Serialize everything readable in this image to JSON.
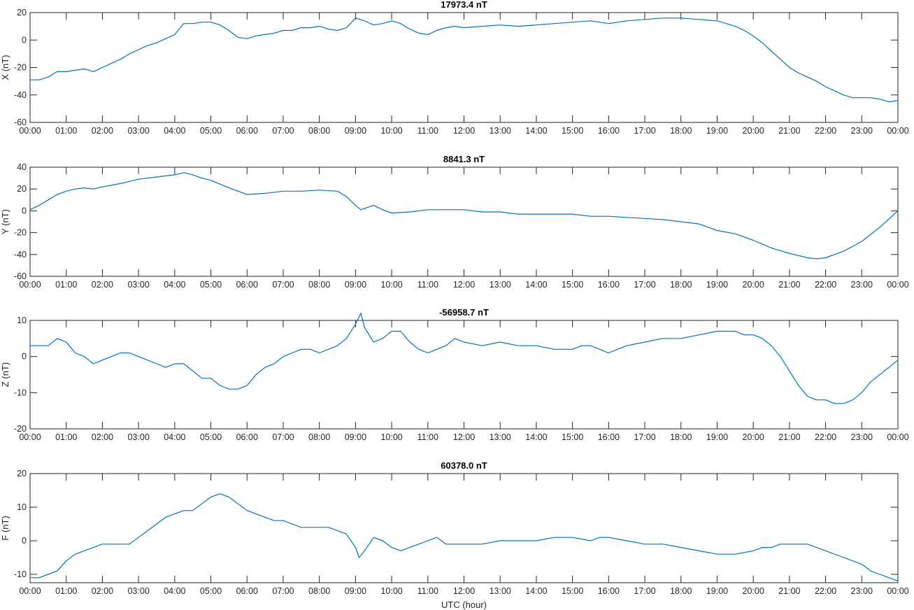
{
  "chart_data": [
    {
      "type": "line",
      "title": "17973.4 nT",
      "ylabel": "X (nT)",
      "xlabel": "",
      "ylim": [
        -60,
        20
      ],
      "yticks": [
        -60,
        -40,
        -20,
        0,
        20
      ],
      "xlim_hours": [
        0,
        24
      ],
      "xticks": [
        "00:00",
        "01:00",
        "02:00",
        "03:00",
        "04:00",
        "05:00",
        "06:00",
        "07:00",
        "08:00",
        "09:00",
        "10:00",
        "11:00",
        "12:00",
        "13:00",
        "14:00",
        "15:00",
        "16:00",
        "17:00",
        "18:00",
        "19:00",
        "20:00",
        "21:00",
        "22:00",
        "23:00",
        "00:00"
      ],
      "grid": false,
      "color": "#0072bd",
      "series": [
        {
          "x_hours": [
            0,
            0.25,
            0.5,
            0.75,
            1.0,
            1.25,
            1.5,
            1.75,
            2.0,
            2.25,
            2.5,
            2.75,
            3.0,
            3.25,
            3.5,
            3.75,
            4.0,
            4.25,
            4.5,
            4.75,
            5.0,
            5.25,
            5.5,
            5.75,
            6.0,
            6.25,
            6.5,
            6.75,
            7.0,
            7.25,
            7.5,
            7.75,
            8.0,
            8.25,
            8.5,
            8.75,
            9.0,
            9.25,
            9.5,
            9.75,
            10.0,
            10.25,
            10.5,
            10.75,
            11.0,
            11.25,
            11.5,
            11.75,
            12.0,
            12.5,
            13.0,
            13.5,
            14.0,
            14.5,
            15.0,
            15.5,
            16.0,
            16.5,
            17.0,
            17.5,
            17.75,
            18.0,
            18.5,
            19.0,
            19.25,
            19.5,
            19.75,
            20.0,
            20.25,
            20.5,
            20.75,
            21.0,
            21.25,
            21.5,
            21.75,
            22.0,
            22.25,
            22.5,
            22.75,
            23.0,
            23.25,
            23.5,
            23.75,
            24.0
          ],
          "values": [
            -29,
            -29,
            -27,
            -23,
            -23,
            -22,
            -21,
            -23,
            -20,
            -17,
            -14,
            -10,
            -7,
            -4,
            -2,
            1,
            4,
            12,
            12,
            13,
            13,
            11,
            7,
            2,
            1,
            3,
            4,
            5,
            7,
            7,
            9,
            9,
            10,
            8,
            7,
            9,
            16,
            14,
            11,
            12,
            14,
            12,
            8,
            5,
            4,
            7,
            9,
            10,
            9,
            10,
            11,
            10,
            11,
            12,
            13,
            14,
            12,
            14,
            15,
            16,
            16,
            16,
            15,
            14,
            12,
            10,
            7,
            3,
            -2,
            -8,
            -14,
            -20,
            -24,
            -27,
            -30,
            -34,
            -37,
            -40,
            -42,
            -42,
            -42,
            -43,
            -45,
            -44
          ]
        }
      ]
    },
    {
      "type": "line",
      "title": "8841.3 nT",
      "ylabel": "Y (nT)",
      "xlabel": "",
      "ylim": [
        -60,
        40
      ],
      "yticks": [
        -60,
        -40,
        -20,
        0,
        20,
        40
      ],
      "xlim_hours": [
        0,
        24
      ],
      "xticks": [
        "00:00",
        "01:00",
        "02:00",
        "03:00",
        "04:00",
        "05:00",
        "06:00",
        "07:00",
        "08:00",
        "09:00",
        "10:00",
        "11:00",
        "12:00",
        "13:00",
        "14:00",
        "15:00",
        "16:00",
        "17:00",
        "18:00",
        "19:00",
        "20:00",
        "21:00",
        "22:00",
        "23:00",
        "00:00"
      ],
      "grid": false,
      "color": "#0072bd",
      "series": [
        {
          "x_hours": [
            0,
            0.25,
            0.5,
            0.75,
            1.0,
            1.25,
            1.5,
            1.75,
            2.0,
            2.5,
            3.0,
            3.5,
            4.0,
            4.25,
            4.5,
            4.75,
            5.0,
            5.5,
            6.0,
            6.5,
            7.0,
            7.5,
            8.0,
            8.5,
            8.75,
            9.0,
            9.15,
            9.5,
            9.75,
            10.0,
            10.5,
            11.0,
            11.5,
            12.0,
            12.5,
            13.0,
            13.5,
            14.0,
            14.5,
            15.0,
            15.5,
            16.0,
            16.5,
            17.0,
            17.5,
            18.0,
            18.5,
            19.0,
            19.5,
            20.0,
            20.5,
            21.0,
            21.5,
            21.75,
            22.0,
            22.5,
            23.0,
            23.5,
            24.0
          ],
          "values": [
            1,
            5,
            10,
            15,
            18,
            20,
            21,
            20,
            22,
            25,
            29,
            31,
            33,
            35,
            33,
            30,
            28,
            21,
            15,
            16,
            18,
            18,
            19,
            18,
            13,
            5,
            1,
            5,
            1,
            -2,
            -1,
            1,
            1,
            1,
            -1,
            -1,
            -3,
            -3,
            -3,
            -3,
            -5,
            -5,
            -6,
            -7,
            -8,
            -10,
            -12,
            -18,
            -21,
            -27,
            -34,
            -39,
            -43,
            -44,
            -43,
            -37,
            -28,
            -15,
            0
          ]
        }
      ]
    },
    {
      "type": "line",
      "title": "-56958.7 nT",
      "ylabel": "Z (nT)",
      "xlabel": "",
      "ylim": [
        -20,
        10
      ],
      "yticks": [
        -20,
        -10,
        0,
        10
      ],
      "xlim_hours": [
        0,
        24
      ],
      "xticks": [
        "00:00",
        "01:00",
        "02:00",
        "03:00",
        "04:00",
        "05:00",
        "06:00",
        "07:00",
        "08:00",
        "09:00",
        "10:00",
        "11:00",
        "12:00",
        "13:00",
        "14:00",
        "15:00",
        "16:00",
        "17:00",
        "18:00",
        "19:00",
        "20:00",
        "21:00",
        "22:00",
        "23:00",
        "00:00"
      ],
      "grid": false,
      "color": "#0072bd",
      "series": [
        {
          "x_hours": [
            0,
            0.25,
            0.5,
            0.75,
            1.0,
            1.25,
            1.5,
            1.75,
            2.0,
            2.25,
            2.5,
            2.75,
            3.0,
            3.25,
            3.5,
            3.75,
            4.0,
            4.25,
            4.5,
            4.75,
            5.0,
            5.25,
            5.5,
            5.75,
            6.0,
            6.25,
            6.5,
            6.75,
            7.0,
            7.25,
            7.5,
            7.75,
            8.0,
            8.25,
            8.5,
            8.75,
            9.0,
            9.15,
            9.25,
            9.5,
            9.75,
            10.0,
            10.25,
            10.5,
            10.75,
            11.0,
            11.25,
            11.5,
            11.75,
            12.0,
            12.5,
            13.0,
            13.5,
            14.0,
            14.5,
            15.0,
            15.25,
            15.5,
            15.75,
            16.0,
            16.5,
            17.0,
            17.5,
            18.0,
            18.5,
            19.0,
            19.25,
            19.5,
            19.75,
            20.0,
            20.25,
            20.5,
            20.75,
            21.0,
            21.25,
            21.5,
            21.75,
            22.0,
            22.25,
            22.5,
            22.75,
            23.0,
            23.25,
            23.5,
            23.75,
            24.0
          ],
          "values": [
            3,
            3,
            3,
            5,
            4,
            1,
            0,
            -2,
            -1,
            0,
            1,
            1,
            0,
            -1,
            -2,
            -3,
            -2,
            -2,
            -4,
            -6,
            -6,
            -8,
            -9,
            -9,
            -8,
            -5,
            -3,
            -2,
            0,
            1,
            2,
            2,
            1,
            2,
            3,
            5,
            9,
            12,
            8,
            4,
            5,
            7,
            7,
            4,
            2,
            1,
            2,
            3,
            5,
            4,
            3,
            4,
            3,
            3,
            2,
            2,
            3,
            3,
            2,
            1,
            3,
            4,
            5,
            5,
            6,
            7,
            7,
            7,
            6,
            6,
            5,
            3,
            0,
            -4,
            -8,
            -11,
            -12,
            -12,
            -13,
            -13,
            -12,
            -10,
            -7,
            -5,
            -3,
            -1
          ]
        }
      ]
    },
    {
      "type": "line",
      "title": "60378.0 nT",
      "ylabel": "F (nT)",
      "xlabel": "UTC (hour)",
      "ylim": [
        -12.5,
        20
      ],
      "yticks": [
        -10,
        0,
        10,
        20
      ],
      "xlim_hours": [
        0,
        24
      ],
      "xticks": [
        "00:00",
        "01:00",
        "02:00",
        "03:00",
        "04:00",
        "05:00",
        "06:00",
        "07:00",
        "08:00",
        "09:00",
        "10:00",
        "11:00",
        "12:00",
        "13:00",
        "14:00",
        "15:00",
        "16:00",
        "17:00",
        "18:00",
        "19:00",
        "20:00",
        "21:00",
        "22:00",
        "23:00",
        "00:00"
      ],
      "grid": false,
      "color": "#0072bd",
      "series": [
        {
          "x_hours": [
            0,
            0.25,
            0.5,
            0.75,
            1.0,
            1.25,
            1.5,
            1.75,
            2.0,
            2.25,
            2.5,
            2.75,
            3.0,
            3.25,
            3.5,
            3.75,
            4.0,
            4.25,
            4.5,
            4.75,
            5.0,
            5.25,
            5.5,
            5.75,
            6.0,
            6.25,
            6.5,
            6.75,
            7.0,
            7.25,
            7.5,
            7.75,
            8.0,
            8.25,
            8.5,
            8.75,
            9.0,
            9.1,
            9.25,
            9.5,
            9.75,
            10.0,
            10.25,
            10.5,
            10.75,
            11.0,
            11.25,
            11.5,
            11.75,
            12.0,
            12.5,
            13.0,
            13.5,
            14.0,
            14.5,
            15.0,
            15.5,
            15.75,
            16.0,
            16.5,
            17.0,
            17.5,
            18.0,
            18.5,
            19.0,
            19.5,
            20.0,
            20.25,
            20.5,
            20.75,
            21.0,
            21.25,
            21.5,
            21.75,
            22.0,
            22.5,
            23.0,
            23.25,
            23.5,
            23.75,
            24.0
          ],
          "values": [
            -11,
            -11,
            -10,
            -9,
            -6,
            -4,
            -3,
            -2,
            -1,
            -1,
            -1,
            -1,
            1,
            3,
            5,
            7,
            8,
            9,
            9,
            11,
            13,
            14,
            13,
            11,
            9,
            8,
            7,
            6,
            6,
            5,
            4,
            4,
            4,
            4,
            3,
            2,
            -2,
            -5,
            -3,
            1,
            0,
            -2,
            -3,
            -2,
            -1,
            0,
            1,
            -1,
            -1,
            -1,
            -1,
            0,
            0,
            0,
            1,
            1,
            0,
            1,
            1,
            0,
            -1,
            -1,
            -2,
            -3,
            -4,
            -4,
            -3,
            -2,
            -2,
            -1,
            -1,
            -1,
            -1,
            -2,
            -3,
            -5,
            -7,
            -9,
            -10,
            -11,
            -12
          ]
        }
      ]
    }
  ]
}
